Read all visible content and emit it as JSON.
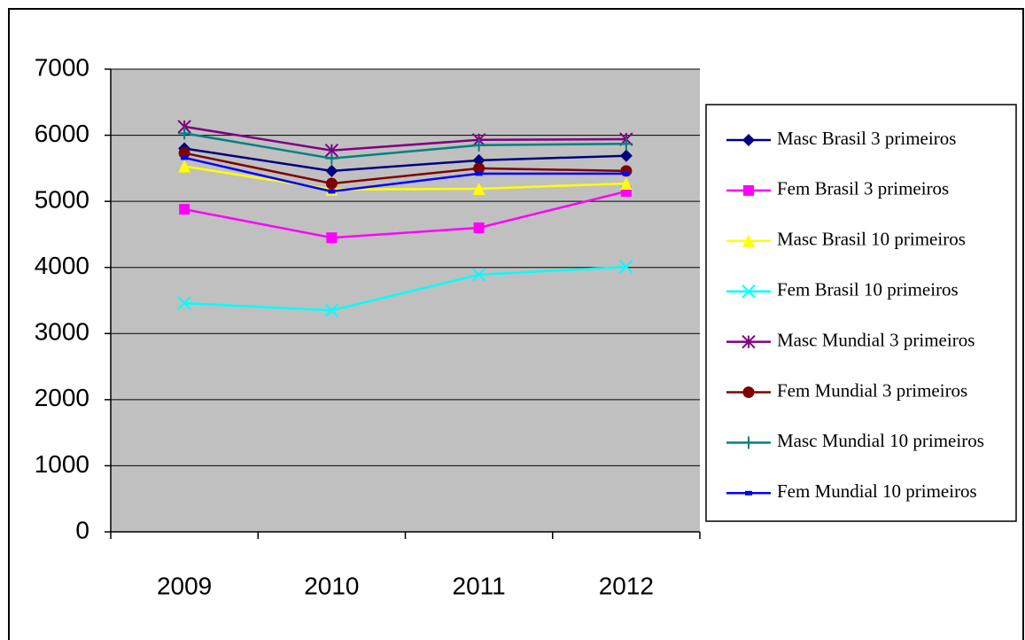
{
  "chart_data": {
    "type": "line",
    "categories": [
      "2009",
      "2010",
      "2011",
      "2012"
    ],
    "ylim": [
      0,
      7000
    ],
    "yticks": [
      0,
      1000,
      2000,
      3000,
      4000,
      5000,
      6000,
      7000
    ],
    "grid": true,
    "legend": "right",
    "series": [
      {
        "name": "Masc Brasil 3 primeiros",
        "color": "#000080",
        "marker": "diamond",
        "values": [
          5800,
          5460,
          5620,
          5690
        ]
      },
      {
        "name": "Fem Brasil 3 primeiros",
        "color": "#ff00ff",
        "marker": "square",
        "values": [
          4880,
          4450,
          4600,
          5150
        ]
      },
      {
        "name": "Masc Brasil 10 primeiros",
        "color": "#ffff00",
        "marker": "triangle",
        "values": [
          5530,
          5180,
          5190,
          5270
        ]
      },
      {
        "name": "Fem Brasil 10 primeiros",
        "color": "#00ffff",
        "marker": "x",
        "values": [
          3460,
          3350,
          3890,
          4010
        ]
      },
      {
        "name": "Masc Mundial 3 primeiros",
        "color": "#800080",
        "marker": "star",
        "values": [
          6130,
          5770,
          5930,
          5940
        ]
      },
      {
        "name": "Fem Mundial 3 primeiros",
        "color": "#800000",
        "marker": "circle",
        "values": [
          5730,
          5270,
          5500,
          5460
        ]
      },
      {
        "name": "Masc Mundial 10 primeiros",
        "color": "#008080",
        "marker": "plus",
        "values": [
          6030,
          5650,
          5850,
          5870
        ]
      },
      {
        "name": "Fem Mundial 10 primeiros",
        "color": "#0000ff",
        "marker": "dash",
        "values": [
          5660,
          5150,
          5420,
          5420
        ]
      }
    ]
  }
}
